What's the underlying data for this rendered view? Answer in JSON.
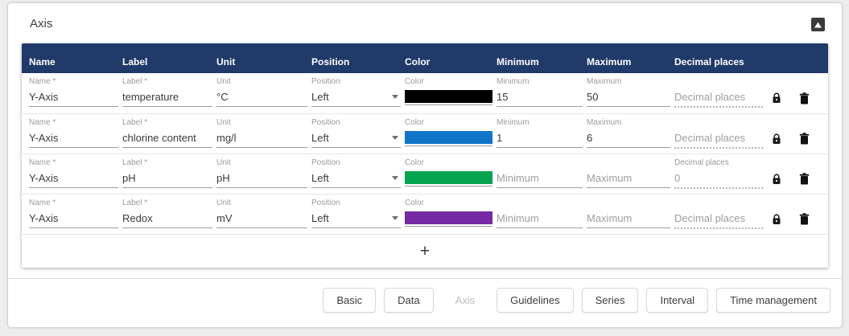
{
  "theme": {
    "header_bg": "#203A69",
    "swatch_black": "#000000",
    "swatch_blue": "#1175C8",
    "swatch_green": "#06A44F",
    "swatch_purple": "#7529A3"
  },
  "card": {
    "title": "Axis",
    "corner_icon": "image-icon"
  },
  "table": {
    "headers": [
      "Name",
      "Label",
      "Unit",
      "Position",
      "Color",
      "Minimum",
      "Maximum",
      "Decimal places"
    ],
    "field_labels": {
      "name": "Name *",
      "label": "Label *",
      "unit": "Unit",
      "position": "Position",
      "color": "Color",
      "minimum": "Minimum",
      "maximum": "Maximum",
      "decimal": "Decimal places"
    },
    "placeholders": {
      "minimum": "Minimum",
      "maximum": "Maximum",
      "decimal": "Decimal places"
    },
    "rows": [
      {
        "name": "Y-Axis",
        "label": "temperature",
        "unit": "°C",
        "position": "Left",
        "color": "#000000",
        "minimum": "15",
        "maximum": "50",
        "decimal": ""
      },
      {
        "name": "Y-Axis",
        "label": "chlorine content",
        "unit": "mg/l",
        "position": "Left",
        "color": "#1175C8",
        "minimum": "1",
        "maximum": "6",
        "decimal": ""
      },
      {
        "name": "Y-Axis",
        "label": "pH",
        "unit": "pH",
        "position": "Left",
        "color": "#06A44F",
        "minimum": "",
        "maximum": "",
        "decimal": "0"
      },
      {
        "name": "Y-Axis",
        "label": "Redox",
        "unit": "mV",
        "position": "Left",
        "color": "#7529A3",
        "minimum": "",
        "maximum": "",
        "decimal": ""
      }
    ],
    "add_row_label": "+"
  },
  "footer": {
    "buttons": [
      {
        "label": "Basic",
        "disabled": false
      },
      {
        "label": "Data",
        "disabled": false
      },
      {
        "label": "Axis",
        "disabled": true
      },
      {
        "label": "Guidelines",
        "disabled": false
      },
      {
        "label": "Series",
        "disabled": false
      },
      {
        "label": "Interval",
        "disabled": false
      },
      {
        "label": "Time management",
        "disabled": false
      }
    ]
  }
}
